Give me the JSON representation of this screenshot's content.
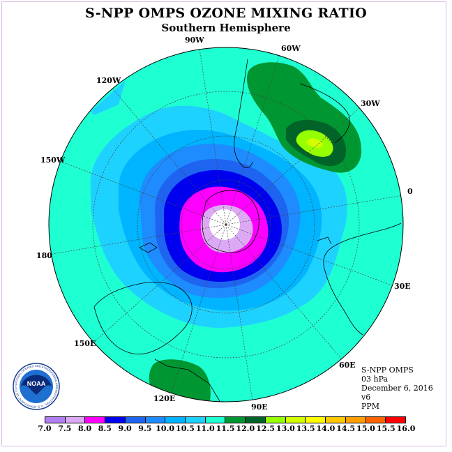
{
  "title": "S-NPP OMPS OZONE MIXING RATIO",
  "subtitle": "Southern Hemisphere",
  "longitude_labels": {
    "lon_90w": "90W",
    "lon_60w": "60W",
    "lon_30w": "30W",
    "lon_0": "0",
    "lon_30e": "30E",
    "lon_60e": "60E",
    "lon_90e": "90E",
    "lon_120e": "120E",
    "lon_150e": "150E",
    "lon_180": "180",
    "lon_150w": "150W",
    "lon_120w": "120W"
  },
  "info": {
    "instrument": "S-NPP OMPS",
    "level": "03 hPa",
    "date": "December 6, 2016",
    "version": "v6",
    "units": "PPM"
  },
  "colorbar": {
    "ticks": [
      "7.0",
      "7.5",
      "8.0",
      "8.5",
      "9.0",
      "9.5",
      "10.0",
      "10.5",
      "11.0",
      "11.5",
      "12.0",
      "12.5",
      "13.0",
      "13.5",
      "14.0",
      "14.5",
      "15.0",
      "15.5",
      "16.0"
    ],
    "colors": [
      "#b07ff0",
      "#dcaaf4",
      "#ff00ff",
      "#0000ee",
      "#1e64f0",
      "#1e8cff",
      "#00b4ff",
      "#1ed2ff",
      "#1effd2",
      "#009632",
      "#006428",
      "#96ff00",
      "#d2ff00",
      "#ffff00",
      "#ffc800",
      "#ffa000",
      "#ff6400",
      "#ff0000",
      "#9c5a3c"
    ]
  },
  "logo": {
    "text": "NOAA",
    "ring_text": "NATIONAL OCEANIC AND ATMOSPHERIC ADMINISTRATION · U.S. DEPARTMENT OF COMMERCE"
  }
}
